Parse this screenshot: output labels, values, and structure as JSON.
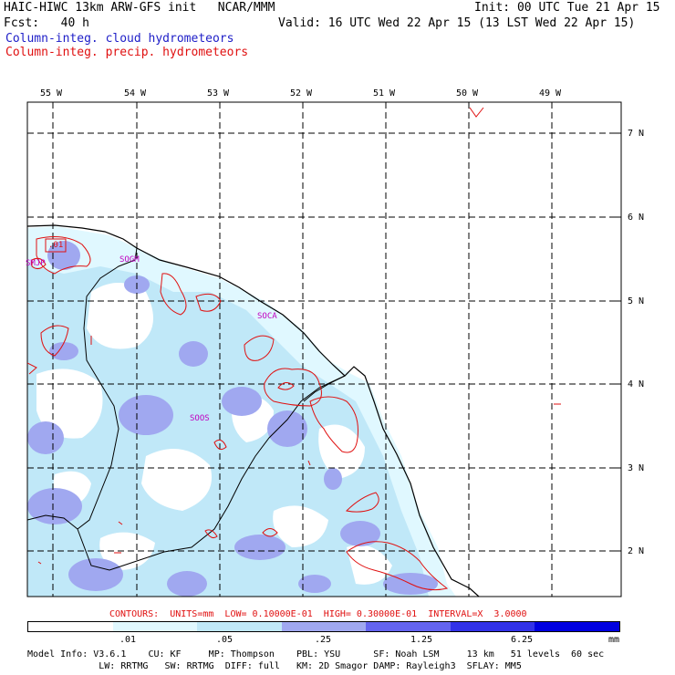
{
  "header": {
    "model_title": "HAIC-HIWC 13km ARW-GFS init   NCAR/MMM",
    "init": "Init: 00 UTC Tue 21 Apr 15",
    "fcst": "Fcst:   40 h",
    "valid": "Valid: 16 UTC Wed 22 Apr 15 (13 LST Wed 22 Apr 15)",
    "field1": "Column-integ. cloud hydrometeors",
    "field2": "Column-integ. precip. hydrometeors",
    "field1_color": "#2020c8",
    "field2_color": "#e01010"
  },
  "lon_labels": [
    "55 W",
    "54 W",
    "53 W",
    "52 W",
    "51 W",
    "50 W",
    "49 W"
  ],
  "lat_labels": [
    "7 N",
    "6 N",
    "5 N",
    "4 N",
    "3 N",
    "2 N"
  ],
  "stations": [
    "SMJP",
    "SOGM",
    "SOCA",
    "SOOS"
  ],
  "contour_label": ".01",
  "contour_info": "CONTOURS:  UNITS=mm  LOW= 0.10000E-01  HIGH= 0.30000E-01  INTERVAL=X  3.0000",
  "colorbar": {
    "tick_labels": [
      ".01",
      ".05",
      ".25",
      "1.25",
      "6.25"
    ],
    "unit": "mm",
    "colors": [
      "#ffffff",
      "#e0f8ff",
      "#c0e8f8",
      "#a0a8f0",
      "#6464f0",
      "#3232e8",
      "#0000e0"
    ]
  },
  "model_info": {
    "line1": "Model Info: V3.6.1    CU: KF     MP: Thompson    PBL: YSU      SF: Noah LSM     13 km   51 levels  60 sec",
    "line2": "             LW: RRTMG   SW: RRTMG  DIFF: full   KM: 2D Smagor DAMP: Rayleigh3  SFLAY: MM5"
  }
}
